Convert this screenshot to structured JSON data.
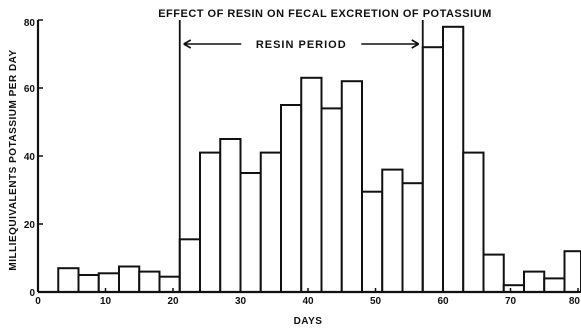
{
  "chart_data": {
    "type": "bar",
    "title": "EFFECT OF RESIN ON FECAL EXCRETION OF POTASSIUM",
    "xlabel": "DAYS",
    "ylabel": "MILLIEQUIVALENTS POTASSIUM PER DAY",
    "xlim": [
      0,
      80
    ],
    "ylim": [
      0,
      80
    ],
    "bin_width": 3,
    "x": [
      4.5,
      7.5,
      10.5,
      13.5,
      16.5,
      19.5,
      22.5,
      25.5,
      28.5,
      31.5,
      34.5,
      37.5,
      40.5,
      43.5,
      46.5,
      49.5,
      52.5,
      55.5,
      58.5,
      61.5,
      64.5,
      67.5,
      70.5,
      73.5,
      76.5,
      79.5
    ],
    "values": [
      7,
      5,
      5.5,
      7.5,
      6,
      4.5,
      15.5,
      41,
      45,
      35,
      41,
      55,
      63,
      54,
      62,
      29.5,
      36,
      32,
      72,
      78,
      41,
      11,
      2,
      6,
      4,
      12
    ],
    "x_ticks": [
      0,
      10,
      20,
      30,
      40,
      50,
      60,
      70,
      80
    ],
    "x_tick_labels": [
      "0",
      "10",
      "20",
      "30",
      "40",
      "50",
      "60",
      "70",
      "80"
    ],
    "y_ticks": [
      0,
      20,
      40,
      60,
      80
    ],
    "y_tick_labels": [
      "0",
      "20",
      "40",
      "60",
      "80"
    ],
    "annotations": [
      {
        "text": "RESIN PERIOD",
        "x_start": 21,
        "x_end": 57
      }
    ],
    "grid": false,
    "legend": "none"
  }
}
